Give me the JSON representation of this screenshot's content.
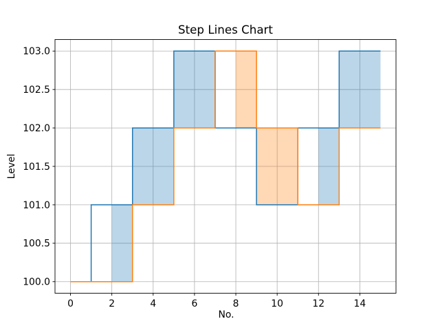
{
  "chart_data": {
    "type": "line",
    "subtype": "step",
    "step_where": "post",
    "title": "Step Lines Chart",
    "xlabel": "No.",
    "ylabel": "Level",
    "x": [
      0,
      1,
      2,
      3,
      4,
      5,
      6,
      7,
      8,
      9,
      10,
      11,
      12,
      13,
      14,
      15
    ],
    "series": [
      {
        "name": "blue-series",
        "color": "#1f77b4",
        "values": [
          100,
          101,
          101,
          102,
          102,
          103,
          103,
          102,
          102,
          101,
          101,
          102,
          102,
          103,
          103,
          103
        ]
      },
      {
        "name": "orange-series",
        "color": "#ff7f0e",
        "values": [
          100,
          100,
          100,
          101,
          101,
          102,
          102,
          103,
          103,
          102,
          102,
          101,
          101,
          102,
          102,
          102
        ]
      }
    ],
    "fills": [
      {
        "x0": 2,
        "x1": 3,
        "y0": 100,
        "y1": 101,
        "color": "#1f77b4"
      },
      {
        "x0": 3,
        "x1": 5,
        "y0": 101,
        "y1": 102,
        "color": "#1f77b4"
      },
      {
        "x0": 5,
        "x1": 7,
        "y0": 102,
        "y1": 103,
        "color": "#1f77b4"
      },
      {
        "x0": 8,
        "x1": 9,
        "y0": 102,
        "y1": 103,
        "color": "#ff7f0e"
      },
      {
        "x0": 9,
        "x1": 11,
        "y0": 101,
        "y1": 102,
        "color": "#ff7f0e"
      },
      {
        "x0": 12,
        "x1": 13,
        "y0": 101,
        "y1": 102,
        "color": "#1f77b4"
      },
      {
        "x0": 13,
        "x1": 15,
        "y0": 102,
        "y1": 103,
        "color": "#1f77b4"
      }
    ],
    "fill_alpha": 0.3,
    "xlim": [
      -0.75,
      15.75
    ],
    "ylim": [
      99.85,
      103.15
    ],
    "xtick_values": [
      0,
      2,
      4,
      6,
      8,
      10,
      12,
      14
    ],
    "xtick_labels": [
      "0",
      "2",
      "4",
      "6",
      "8",
      "10",
      "12",
      "14"
    ],
    "ytick_values": [
      100.0,
      100.5,
      101.0,
      101.5,
      102.0,
      102.5,
      103.0
    ],
    "ytick_labels": [
      "100.0",
      "100.5",
      "101.0",
      "101.5",
      "102.0",
      "102.5",
      "103.0"
    ],
    "grid": true,
    "grid_color": "#b0b0b0",
    "spine_color": "#000000",
    "line_width": 1.5,
    "legend": "none"
  }
}
